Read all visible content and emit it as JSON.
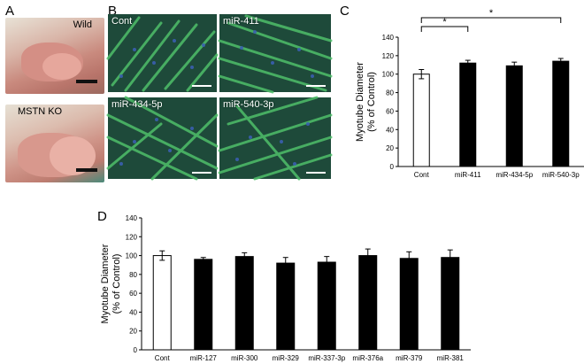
{
  "panels": {
    "A": {
      "letter": "A",
      "photos": [
        {
          "label": "Wild"
        },
        {
          "label": "MSTN KO"
        }
      ]
    },
    "B": {
      "letter": "B",
      "images": [
        {
          "label": "Cont"
        },
        {
          "label": "miR-411"
        },
        {
          "label": "miR-434-5p"
        },
        {
          "label": "miR-540-3p"
        }
      ]
    },
    "C": {
      "letter": "C"
    },
    "D": {
      "letter": "D"
    }
  },
  "colors": {
    "control_bar": "#ffffff",
    "treatment_bar": "#000000",
    "micrograph_bg": "#1e4a3a",
    "myotube": "#4fbf6a",
    "nuclei": "#3a5fb0",
    "tissue": "#c98a7e"
  },
  "chart_data": [
    {
      "id": "C",
      "type": "bar",
      "ylabel": "Myotube Diameter\n(% of Control)",
      "ylim": [
        0,
        140
      ],
      "yticks": [
        0,
        20,
        40,
        60,
        80,
        100,
        120,
        140
      ],
      "grid": false,
      "categories": [
        "Cont",
        "miR-411",
        "miR-434-5p",
        "miR-540-3p"
      ],
      "values": [
        100,
        112,
        109,
        114
      ],
      "errors": [
        5,
        3,
        4,
        3
      ],
      "significance": [
        {
          "from": "Cont",
          "to": "miR-411",
          "label": "*"
        },
        {
          "from": "Cont",
          "to": "miR-540-3p",
          "label": "*"
        }
      ]
    },
    {
      "id": "D",
      "type": "bar",
      "ylabel": "Myotube Diameter\n(% of Control)",
      "ylim": [
        0,
        140
      ],
      "yticks": [
        0,
        20,
        40,
        60,
        80,
        100,
        120,
        140
      ],
      "grid": false,
      "categories": [
        "Cont",
        "miR-127",
        "miR-300",
        "miR-329",
        "miR-337-3p",
        "miR-376a",
        "miR-379",
        "miR-381"
      ],
      "values": [
        100,
        96,
        99,
        92,
        93,
        100,
        97,
        98
      ],
      "errors": [
        5,
        2,
        4,
        6,
        6,
        7,
        7,
        8
      ],
      "significance": []
    }
  ]
}
